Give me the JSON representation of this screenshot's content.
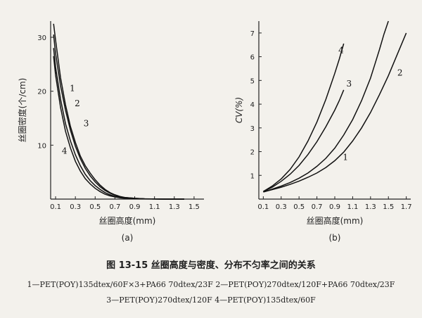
{
  "caption": "图 13-15  丝圈高度与密度、分布不匀率之间的关系",
  "legend_lines": [
    "1—PET(POY)135dtex/60F×3+PA66 70dtex/23F   2—PET(POY)270dtex/120F+PA66 70dtex/23F",
    "3—PET(POY)270dtex/120F   4—PET(POY)135dtex/60F"
  ],
  "chart_data": [
    {
      "type": "line",
      "panel_label": "(a)",
      "xlabel": "丝圈高度(mm)",
      "ylabel": "丝圈密度(个/cm)",
      "xlim": [
        0.05,
        1.6
      ],
      "ylim": [
        0,
        33
      ],
      "xticks": [
        0.1,
        0.3,
        0.5,
        0.7,
        0.9,
        1.1,
        1.3,
        1.5
      ],
      "yticks": [
        10,
        20,
        30
      ],
      "grid": false,
      "series": [
        {
          "name": "1",
          "x": [
            0.08,
            0.1,
            0.15,
            0.2,
            0.25,
            0.3,
            0.35,
            0.4,
            0.45,
            0.5,
            0.55,
            0.6,
            0.65,
            0.7,
            0.75,
            0.8,
            0.9,
            1.0,
            1.2,
            1.4
          ],
          "y": [
            32.5,
            29.5,
            22.5,
            17.5,
            13.5,
            10.5,
            8.0,
            6.2,
            4.8,
            3.6,
            2.6,
            1.8,
            1.2,
            0.8,
            0.5,
            0.3,
            0.15,
            0.05,
            0.0,
            0.0
          ],
          "label_pos": [
            0.27,
            20
          ]
        },
        {
          "name": "2",
          "x": [
            0.08,
            0.1,
            0.15,
            0.2,
            0.25,
            0.3,
            0.35,
            0.4,
            0.45,
            0.5,
            0.55,
            0.6,
            0.65,
            0.7,
            0.75,
            0.8,
            0.9,
            1.0,
            1.2,
            1.4
          ],
          "y": [
            30.5,
            27.0,
            21.0,
            16.5,
            12.8,
            9.8,
            7.5,
            5.7,
            4.3,
            3.2,
            2.3,
            1.6,
            1.1,
            0.7,
            0.45,
            0.3,
            0.15,
            0.05,
            0.0,
            0.0
          ],
          "label_pos": [
            0.32,
            17.2
          ]
        },
        {
          "name": "3",
          "x": [
            0.08,
            0.1,
            0.15,
            0.2,
            0.25,
            0.3,
            0.35,
            0.4,
            0.45,
            0.5,
            0.55,
            0.6,
            0.65,
            0.7,
            0.75,
            0.8,
            0.9,
            1.0,
            1.2,
            1.4
          ],
          "y": [
            28.0,
            24.5,
            18.5,
            14.0,
            10.8,
            8.2,
            6.2,
            4.6,
            3.4,
            2.5,
            1.8,
            1.2,
            0.8,
            0.5,
            0.35,
            0.2,
            0.1,
            0.05,
            0.0,
            0.0
          ],
          "label_pos": [
            0.41,
            13.5
          ]
        },
        {
          "name": "4",
          "x": [
            0.08,
            0.1,
            0.15,
            0.2,
            0.25,
            0.3,
            0.35,
            0.4,
            0.45,
            0.5,
            0.55,
            0.6,
            0.65,
            0.7,
            0.75,
            0.8,
            0.9,
            1.0,
            1.2,
            1.4
          ],
          "y": [
            26.5,
            23.0,
            17.0,
            12.6,
            9.5,
            7.0,
            5.2,
            3.8,
            2.8,
            2.0,
            1.4,
            0.9,
            0.6,
            0.4,
            0.25,
            0.15,
            0.08,
            0.03,
            0.0,
            0.0
          ],
          "label_pos": [
            0.19,
            8.4
          ]
        }
      ]
    },
    {
      "type": "line",
      "panel_label": "(b)",
      "xlabel": "丝圈高度(mm)",
      "ylabel": "CV(%)",
      "xlim": [
        0.05,
        1.75
      ],
      "ylim": [
        0,
        7.5
      ],
      "xticks": [
        0.1,
        0.3,
        0.5,
        0.7,
        0.9,
        1.1,
        1.3,
        1.5,
        1.7
      ],
      "yticks": [
        1,
        2,
        3,
        4,
        5,
        6,
        7
      ],
      "grid": false,
      "series": [
        {
          "name": "1",
          "x": [
            0.1,
            0.2,
            0.3,
            0.4,
            0.5,
            0.6,
            0.7,
            0.8,
            0.9,
            1.0,
            1.1,
            1.2,
            1.3,
            1.35,
            1.4,
            1.45,
            1.5
          ],
          "y": [
            0.3,
            0.42,
            0.55,
            0.7,
            0.88,
            1.1,
            1.38,
            1.72,
            2.15,
            2.7,
            3.35,
            4.15,
            5.1,
            5.7,
            6.3,
            6.95,
            7.5
          ],
          "label_pos": [
            1.02,
            1.65
          ]
        },
        {
          "name": "2",
          "x": [
            0.1,
            0.2,
            0.3,
            0.4,
            0.5,
            0.6,
            0.7,
            0.8,
            0.9,
            1.0,
            1.1,
            1.2,
            1.3,
            1.4,
            1.5,
            1.6,
            1.7
          ],
          "y": [
            0.3,
            0.4,
            0.5,
            0.62,
            0.76,
            0.92,
            1.1,
            1.33,
            1.62,
            1.98,
            2.45,
            3.0,
            3.65,
            4.4,
            5.2,
            6.1,
            7.0
          ],
          "label_pos": [
            1.63,
            5.2
          ]
        },
        {
          "name": "3",
          "x": [
            0.1,
            0.2,
            0.3,
            0.4,
            0.5,
            0.6,
            0.7,
            0.8,
            0.9,
            0.95,
            1.0
          ],
          "y": [
            0.32,
            0.5,
            0.75,
            1.05,
            1.42,
            1.88,
            2.42,
            3.05,
            3.75,
            4.15,
            4.6
          ],
          "label_pos": [
            1.06,
            4.75
          ]
        },
        {
          "name": "4",
          "x": [
            0.1,
            0.2,
            0.3,
            0.4,
            0.5,
            0.6,
            0.7,
            0.8,
            0.9,
            0.95,
            1.0
          ],
          "y": [
            0.32,
            0.55,
            0.85,
            1.25,
            1.78,
            2.45,
            3.25,
            4.2,
            5.3,
            5.9,
            6.55
          ],
          "label_pos": [
            0.97,
            6.15
          ]
        }
      ]
    }
  ]
}
